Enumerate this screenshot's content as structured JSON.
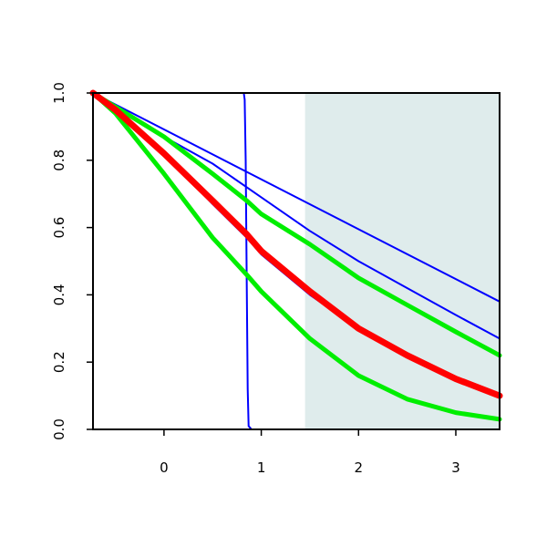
{
  "chart_data": {
    "type": "line",
    "title": "",
    "xlabel": "",
    "ylabel": "",
    "xlim": [
      -0.73,
      3.45
    ],
    "ylim": [
      0,
      1
    ],
    "xticks": [
      0,
      1,
      2,
      3
    ],
    "xtick_labels": [
      "0",
      "1",
      "2",
      "3"
    ],
    "yticks": [
      0,
      0.2,
      0.4,
      0.6,
      0.8,
      1
    ],
    "ytick_labels": [
      "0.0",
      "0.2",
      "0.4",
      "0.6",
      "0.8",
      "1.0"
    ],
    "shaded_region": {
      "x": [
        1.45,
        3.45
      ],
      "color": "#dfecec"
    },
    "grid": false,
    "legend": "none",
    "series": [
      {
        "color": "#0000ff",
        "weight": "thin",
        "x": [
          -0.73,
          0.82,
          0.83,
          0.84,
          0.85,
          0.86,
          0.87,
          0.9,
          3.45
        ],
        "y": [
          1,
          1,
          0.98,
          0.8,
          0.45,
          0.12,
          0.01,
          0,
          0
        ]
      },
      {
        "color": "#0000ff",
        "weight": "thin",
        "x": [
          -0.73,
          3.45
        ],
        "y": [
          1,
          0.38
        ]
      },
      {
        "color": "#0000ff",
        "weight": "thin",
        "x": [
          -0.73,
          0.0,
          0.5,
          1.0,
          1.5,
          2.0,
          2.5,
          3.0,
          3.45
        ],
        "y": [
          1,
          0.87,
          0.79,
          0.69,
          0.59,
          0.5,
          0.42,
          0.34,
          0.27
        ]
      },
      {
        "color": "#0000ff",
        "weight": "thin",
        "x": [
          -0.73,
          -0.5,
          0.0,
          0.5,
          0.85,
          1.0,
          1.5,
          2.0,
          2.5,
          3.0,
          3.45
        ],
        "y": [
          1,
          0.95,
          0.82,
          0.67,
          0.57,
          0.52,
          0.4,
          0.3,
          0.22,
          0.15,
          0.1
        ]
      },
      {
        "color": "#00ee00",
        "weight": "thick",
        "x": [
          -0.73,
          0.0,
          0.5,
          0.85,
          1.0,
          1.5,
          2.0,
          2.5,
          3.0,
          3.45
        ],
        "y": [
          1,
          0.87,
          0.76,
          0.68,
          0.64,
          0.55,
          0.45,
          0.37,
          0.29,
          0.22
        ]
      },
      {
        "color": "#00ee00",
        "weight": "thick",
        "x": [
          -0.73,
          -0.5,
          0.0,
          0.5,
          0.85,
          1.0,
          1.5,
          2.0,
          2.5,
          3.0,
          3.45
        ],
        "y": [
          1,
          0.94,
          0.76,
          0.57,
          0.46,
          0.41,
          0.27,
          0.16,
          0.09,
          0.05,
          0.03
        ]
      },
      {
        "color": "#ff0000",
        "weight": "extra-thick",
        "x": [
          -0.73,
          -0.5,
          0.0,
          0.5,
          0.85,
          1.0,
          1.5,
          2.0,
          2.5,
          3.0,
          3.45
        ],
        "y": [
          1,
          0.95,
          0.82,
          0.68,
          0.58,
          0.53,
          0.41,
          0.3,
          0.22,
          0.15,
          0.1
        ]
      }
    ]
  }
}
